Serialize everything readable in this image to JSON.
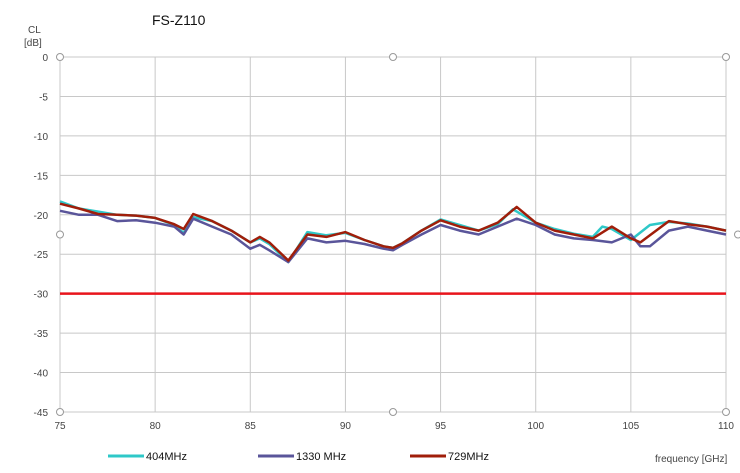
{
  "chart_data": {
    "type": "line",
    "title": "FS-Z110",
    "ylabel_line1": "CL",
    "ylabel_line2": "[dB]",
    "xlabel": "frequency [GHz]",
    "xlim": [
      75,
      110
    ],
    "ylim": [
      -45,
      0
    ],
    "xticks": [
      75,
      80,
      85,
      90,
      95,
      100,
      105,
      110
    ],
    "yticks": [
      0,
      -5,
      -10,
      -15,
      -20,
      -25,
      -30,
      -35,
      -40,
      -45
    ],
    "grid": true,
    "legend_position": "bottom",
    "threshold": {
      "value": -30,
      "color": "#e8141c"
    },
    "series": [
      {
        "name": "404MHz",
        "color": "#2ec8c8",
        "x": [
          75,
          76,
          77,
          78,
          79,
          80,
          81,
          81.5,
          82,
          83,
          84,
          85,
          85.5,
          86,
          87,
          88,
          89,
          90,
          91,
          92,
          92.5,
          93,
          94,
          95,
          96,
          97,
          98,
          98.8,
          100,
          101,
          102,
          103,
          103.5,
          104,
          105,
          106,
          107,
          108,
          109,
          110
        ],
        "y": [
          -18.3,
          -19.2,
          -19.6,
          -20.0,
          -20.1,
          -20.4,
          -21.3,
          -22.3,
          -20.3,
          -20.8,
          -22.0,
          -23.5,
          -23.0,
          -23.7,
          -26.0,
          -22.2,
          -22.6,
          -22.3,
          -23.2,
          -24.0,
          -24.2,
          -23.6,
          -22.0,
          -20.6,
          -21.3,
          -22.0,
          -21.2,
          -19.3,
          -21.0,
          -21.8,
          -22.4,
          -22.8,
          -21.5,
          -21.8,
          -23.2,
          -21.3,
          -20.9,
          -21.1,
          -21.5,
          -22.0
        ]
      },
      {
        "name": "1330 MHz",
        "color": "#5a559a",
        "x": [
          75,
          76,
          77,
          78,
          79,
          80,
          81,
          81.5,
          82,
          83,
          84,
          85,
          85.5,
          86,
          87,
          88,
          89,
          90,
          91,
          92,
          92.5,
          93,
          94,
          95,
          96,
          97,
          98,
          99,
          100,
          101,
          102,
          103,
          104,
          105,
          105.5,
          106,
          107,
          108,
          109,
          110
        ],
        "y": [
          -19.5,
          -20.0,
          -20.0,
          -20.8,
          -20.7,
          -21.0,
          -21.5,
          -22.5,
          -20.5,
          -21.5,
          -22.5,
          -24.3,
          -23.8,
          -24.5,
          -26.0,
          -23.0,
          -23.5,
          -23.3,
          -23.7,
          -24.3,
          -24.5,
          -23.8,
          -22.5,
          -21.3,
          -22.0,
          -22.5,
          -21.5,
          -20.5,
          -21.3,
          -22.5,
          -23.0,
          -23.2,
          -23.5,
          -22.5,
          -24.0,
          -24.0,
          -22.0,
          -21.5,
          -22.0,
          -22.5
        ]
      },
      {
        "name": "729MHz",
        "color": "#a01e0a",
        "x": [
          75,
          76,
          77,
          78,
          79,
          80,
          81,
          81.5,
          82,
          83,
          84,
          85,
          85.5,
          86,
          87,
          88,
          89,
          90,
          91,
          92,
          92.5,
          93,
          94,
          95,
          96,
          97,
          98,
          99,
          100,
          101,
          102,
          103,
          104,
          105,
          105.5,
          106,
          107,
          108,
          109,
          110
        ],
        "y": [
          -18.6,
          -19.2,
          -19.9,
          -20.0,
          -20.1,
          -20.4,
          -21.2,
          -21.8,
          -19.9,
          -20.8,
          -22.0,
          -23.5,
          -22.8,
          -23.5,
          -25.8,
          -22.5,
          -22.8,
          -22.2,
          -23.2,
          -24.0,
          -24.2,
          -23.6,
          -22.0,
          -20.7,
          -21.5,
          -22.0,
          -21.0,
          -19.0,
          -21.0,
          -22.0,
          -22.5,
          -23.0,
          -21.5,
          -23.0,
          -23.5,
          -22.6,
          -20.8,
          -21.2,
          -21.5,
          -22.0
        ]
      }
    ]
  }
}
